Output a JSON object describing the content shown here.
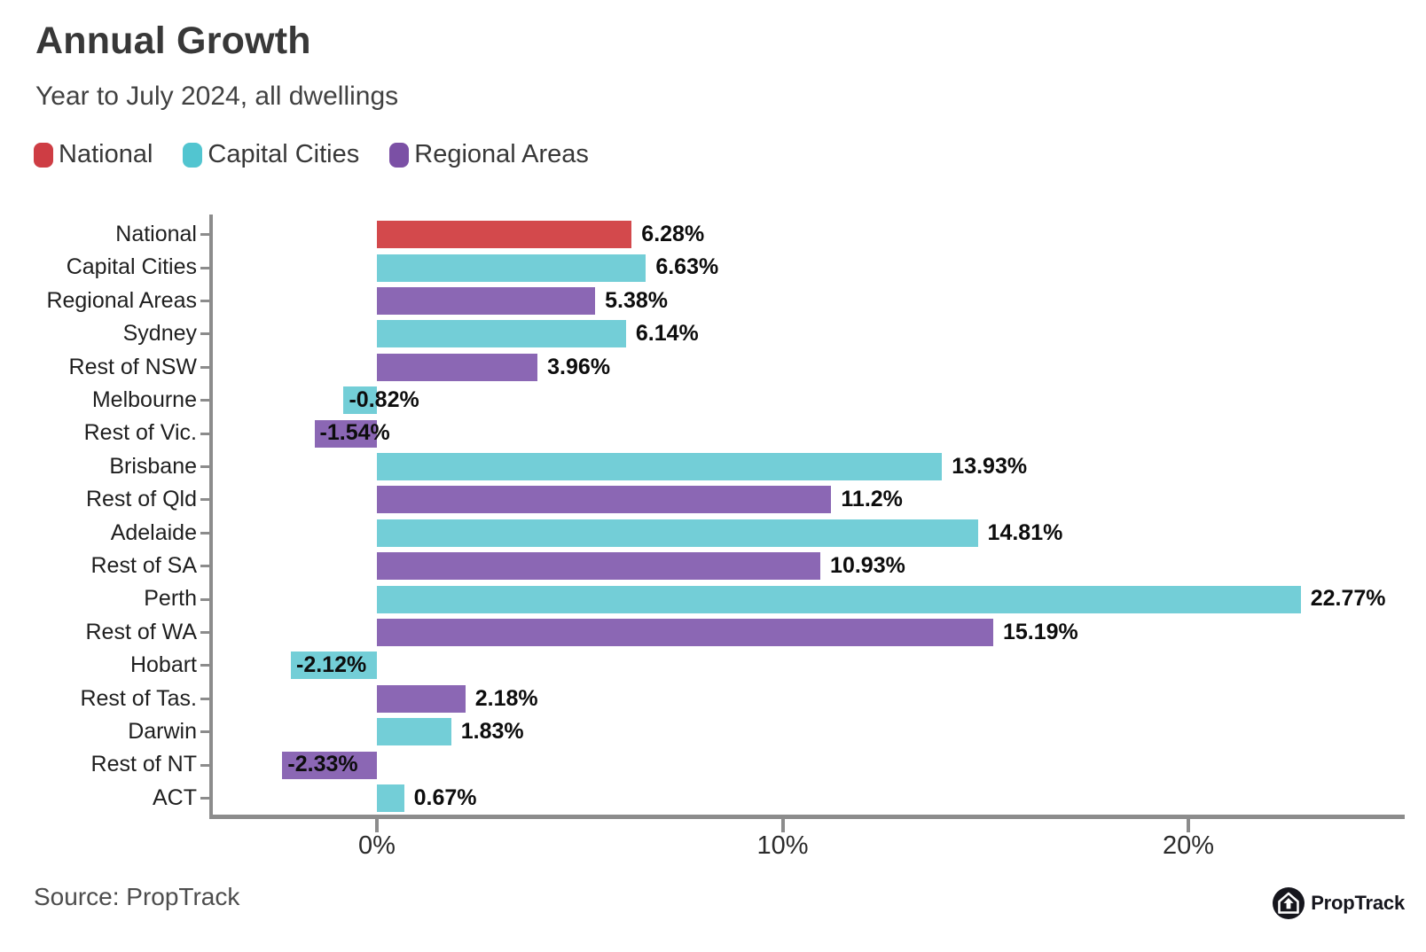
{
  "page": {
    "title": "Annual Growth",
    "subtitle": "Year to July 2024, all dwellings",
    "source": "Source: PropTrack",
    "brand": "PropTrack"
  },
  "legend": {
    "items": [
      {
        "label": "National",
        "color": "#ce3d44"
      },
      {
        "label": "Capital Cities",
        "color": "#52c5d0"
      },
      {
        "label": "Regional Areas",
        "color": "#7b50a5"
      }
    ]
  },
  "chart_data": {
    "type": "bar",
    "orientation": "horizontal",
    "title": "Annual Growth",
    "subtitle": "Year to July 2024, all dwellings",
    "grid": false,
    "legend_position": "top-left",
    "unit": "%",
    "xlim": [
      -4.1,
      25.3
    ],
    "x_tick_values": [
      0,
      10,
      20
    ],
    "x_tick_labels": [
      "0%",
      "10%",
      "20%"
    ],
    "categories": [
      "National",
      "Capital Cities",
      "Regional Areas",
      "Sydney",
      "Rest of NSW",
      "Melbourne",
      "Rest of Vic.",
      "Brisbane",
      "Rest of Qld",
      "Adelaide",
      "Rest of SA",
      "Perth",
      "Rest of WA",
      "Hobart",
      "Rest of Tas.",
      "Darwin",
      "Rest of NT",
      "ACT"
    ],
    "values": [
      6.28,
      6.63,
      5.38,
      6.14,
      3.96,
      -0.82,
      -1.54,
      13.93,
      11.2,
      14.81,
      10.93,
      22.77,
      15.19,
      -2.12,
      2.18,
      1.83,
      -2.33,
      0.67
    ],
    "value_labels": [
      "6.28%",
      "6.63%",
      "5.38%",
      "6.14%",
      "3.96%",
      "-0.82%",
      "-1.54%",
      "13.93%",
      "11.2%",
      "14.81%",
      "10.93%",
      "22.77%",
      "15.19%",
      "-2.12%",
      "2.18%",
      "1.83%",
      "-2.33%",
      "0.67%"
    ],
    "bar_series": [
      "National",
      "Capital Cities",
      "Regional Areas",
      "Capital Cities",
      "Regional Areas",
      "Capital Cities",
      "Regional Areas",
      "Capital Cities",
      "Regional Areas",
      "Capital Cities",
      "Regional Areas",
      "Capital Cities",
      "Regional Areas",
      "Capital Cities",
      "Regional Areas",
      "Capital Cities",
      "Regional Areas",
      "Capital Cities"
    ],
    "series_colors": {
      "National": "#d3494c",
      "Capital Cities": "#73ced7",
      "Regional Areas": "#8b67b4"
    }
  }
}
